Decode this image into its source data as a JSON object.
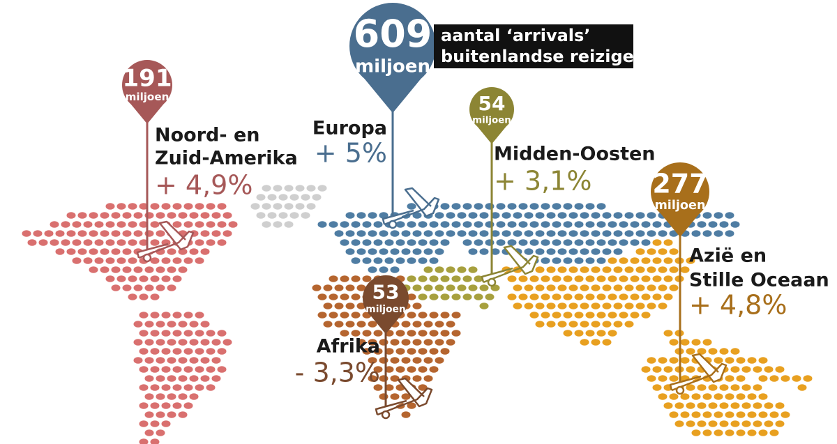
{
  "legend": {
    "line1": "aantal ‘arrivals’",
    "line2": "buitenlandse reizigers"
  },
  "regions": [
    {
      "count": "191",
      "unit": "miljoen",
      "name_lines": [
        "Noord- en",
        "Zuid-Amerika"
      ],
      "change": "+ 4,9%"
    },
    {
      "count": "609",
      "unit": "miljoen",
      "name_lines": [
        "Europa"
      ],
      "change": "+ 5%"
    },
    {
      "count": "54",
      "unit": "miljoen",
      "name_lines": [
        "Midden-Oosten"
      ],
      "change": "+ 3,1%"
    },
    {
      "count": "277",
      "unit": "miljoen",
      "name_lines": [
        "Azië en",
        "Stille Oceaan"
      ],
      "change": "+ 4,8%"
    },
    {
      "count": "53",
      "unit": "miljoen",
      "name_lines": [
        "Afrika"
      ],
      "change": "- 3,3%"
    }
  ]
}
